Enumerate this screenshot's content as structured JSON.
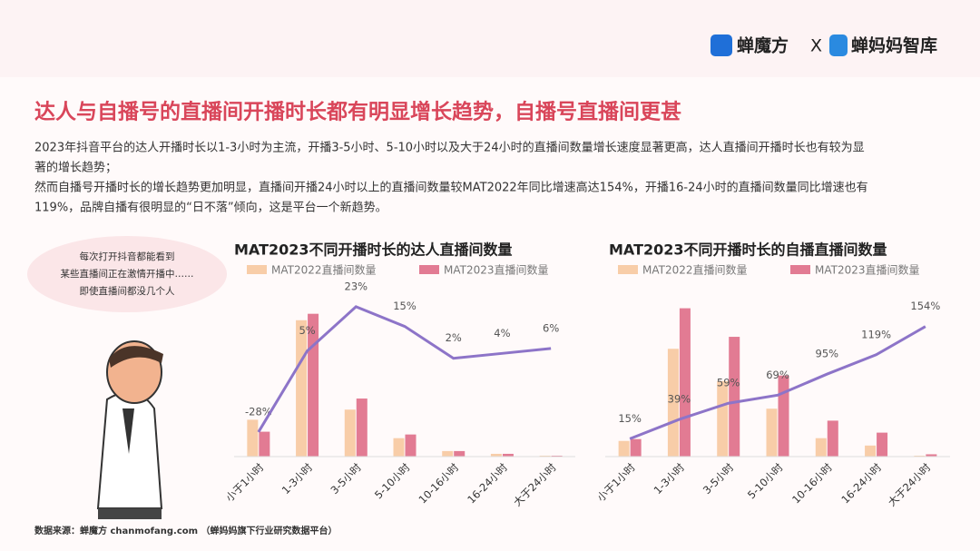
{
  "header": {
    "brand1": "蝉魔方",
    "separator": "X",
    "brand2": "蝉妈妈智库"
  },
  "title": "达人与自播号的直播间开播时长都有明显增长趋势，自播号直播间更甚",
  "paragraph": [
    "2023年抖音平台的达人开播时长以1-3小时为主流，开播3-5小时、5-10小时以及大于24小时的直播间数量增长速度显著更高，达人直播间开播时长也有较为显",
    "著的增长趋势；",
    "然而自播号开播时长的增长趋势更加明显，直播间开播24小时以上的直播间数量较MAT2022年同比增速高达154%，开播16-24小时的直播间数量同比增速也有",
    "119%，品牌自播有很明显的“日不落”倾向，这是平台一个新趋势。"
  ],
  "bubble": [
    "每次打开抖音都能看到",
    "某些直播间正在激情开播中……",
    "即使直播间都没几个人"
  ],
  "source": "数据来源：蝉魔方 chanmofang.com （蝉妈妈旗下行业研究数据平台）",
  "chart_data": [
    {
      "type": "bar",
      "title": "MAT2023不同开播时长的达人直播间数量",
      "categories": [
        "小于1小时",
        "1-3小时",
        "3-5小时",
        "5-10小时",
        "10-16小时",
        "16-24小时",
        "大于24小时"
      ],
      "series": [
        {
          "name": "MAT2022直播间数量",
          "color": "#f8cda8",
          "values": [
            40,
            148,
            51,
            20,
            6,
            3,
            1
          ]
        },
        {
          "name": "MAT2023直播间数量",
          "color": "#e27b93",
          "values": [
            27,
            155,
            63,
            24,
            6,
            3,
            1
          ]
        },
        {
          "type": "line",
          "color": "#8d74c8",
          "axis": "y2",
          "values": [
            -28,
            5,
            23,
            15,
            2,
            4,
            6
          ],
          "value_labels": [
            "-28%",
            "5%",
            "23%",
            "15%",
            "2%",
            "4%",
            "6%"
          ]
        }
      ],
      "ylim": [
        0,
        200
      ],
      "y2lim": [
        -38,
        37
      ]
    },
    {
      "type": "bar",
      "title": "MAT2023不同开播时长的自播直播间数量",
      "categories": [
        "小于1小时",
        "1-3小时",
        "3-5小时",
        "5-10小时",
        "10-16小时",
        "16-24小时",
        "大于24小时"
      ],
      "series": [
        {
          "name": "MAT2022直播间数量",
          "color": "#f8cda8",
          "values": [
            17,
            117,
            82,
            52,
            20,
            12,
            1
          ]
        },
        {
          "name": "MAT2023直播间数量",
          "color": "#e27b93",
          "values": [
            19,
            161,
            130,
            88,
            39,
            26,
            2.5
          ]
        },
        {
          "type": "line",
          "color": "#8d74c8",
          "axis": "y2",
          "values": [
            15,
            39,
            59,
            69,
            95,
            119,
            154
          ],
          "value_labels": [
            "15%",
            "39%",
            "59%",
            "69%",
            "95%",
            "119%",
            "154%"
          ]
        }
      ],
      "ylim": [
        0,
        200
      ],
      "y2lim": [
        -7,
        221
      ]
    }
  ]
}
